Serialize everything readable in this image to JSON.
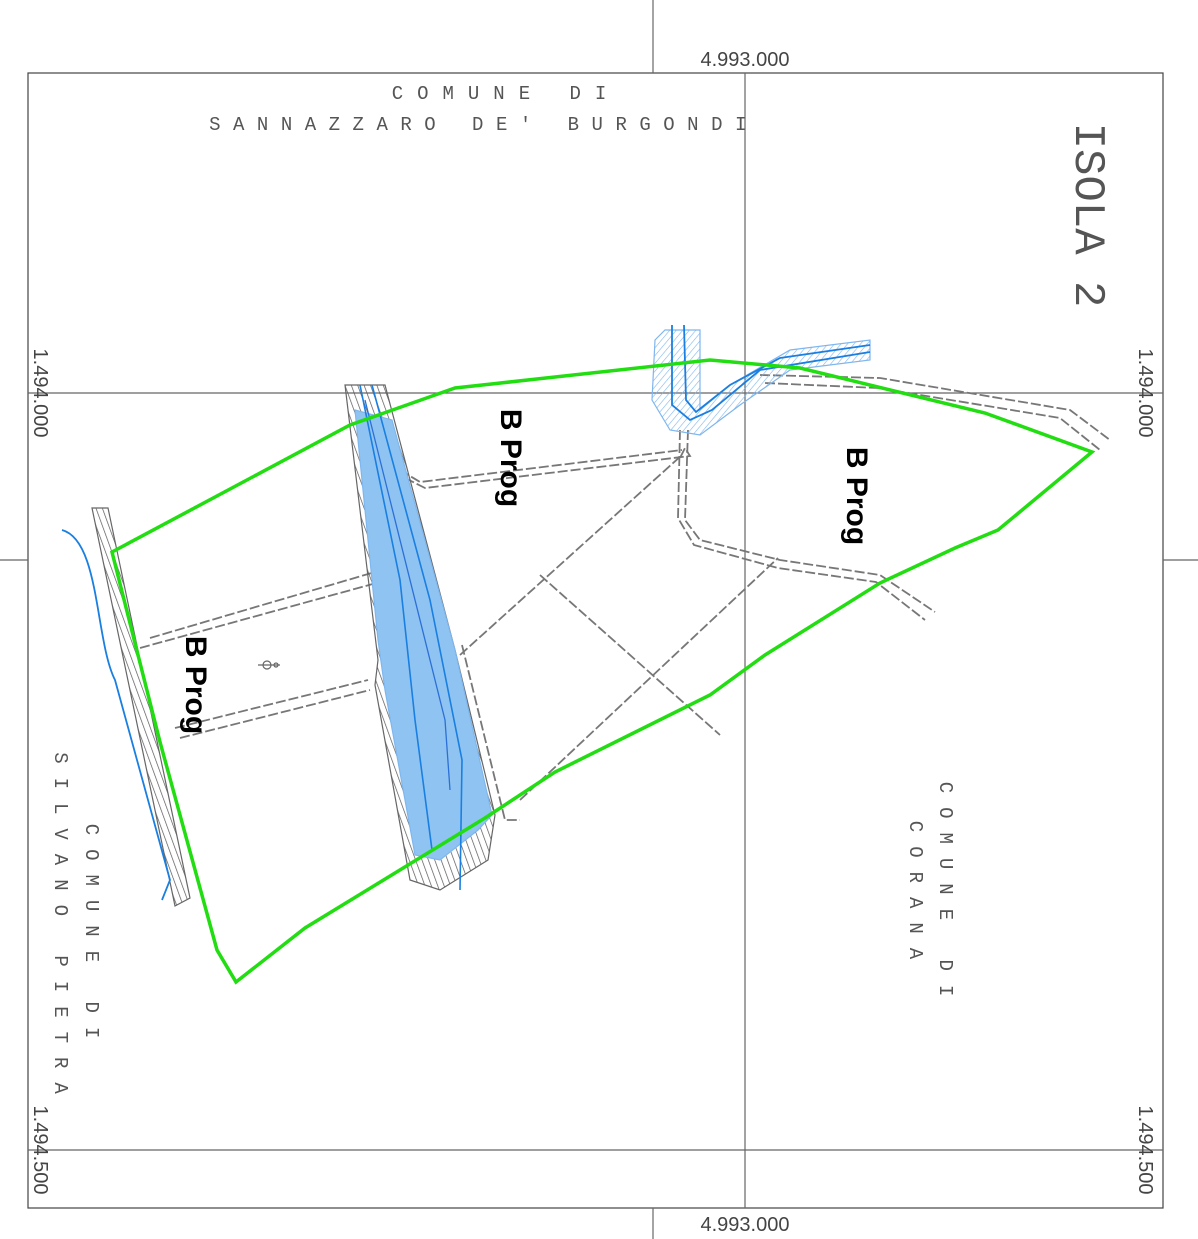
{
  "map": {
    "title": "ISOLA 2",
    "colors": {
      "boundary": "#22dd11",
      "water": "#1a7fe0",
      "water_fill": "#8fc4f2",
      "roads": "#777777",
      "frame": "#444444"
    },
    "coordinates": {
      "top": "4.993.000",
      "bottom": "4.993.000",
      "left_upper": "1.494.000",
      "right_upper": "1.494.000",
      "left_lower": "1.494.500",
      "right_lower": "1.494.500"
    },
    "municipalities": {
      "north_line1": "COMUNE DI",
      "north_line2": "SANNAZZARO DE' BURGONDI",
      "west_line1": "COMUNE DI",
      "west_line2": "SILVANO PIETRA",
      "east_line1": "COMUNE DI",
      "east_line2": "CORANA"
    },
    "zones": [
      "B Prog",
      "B Prog",
      "B Prog"
    ]
  }
}
